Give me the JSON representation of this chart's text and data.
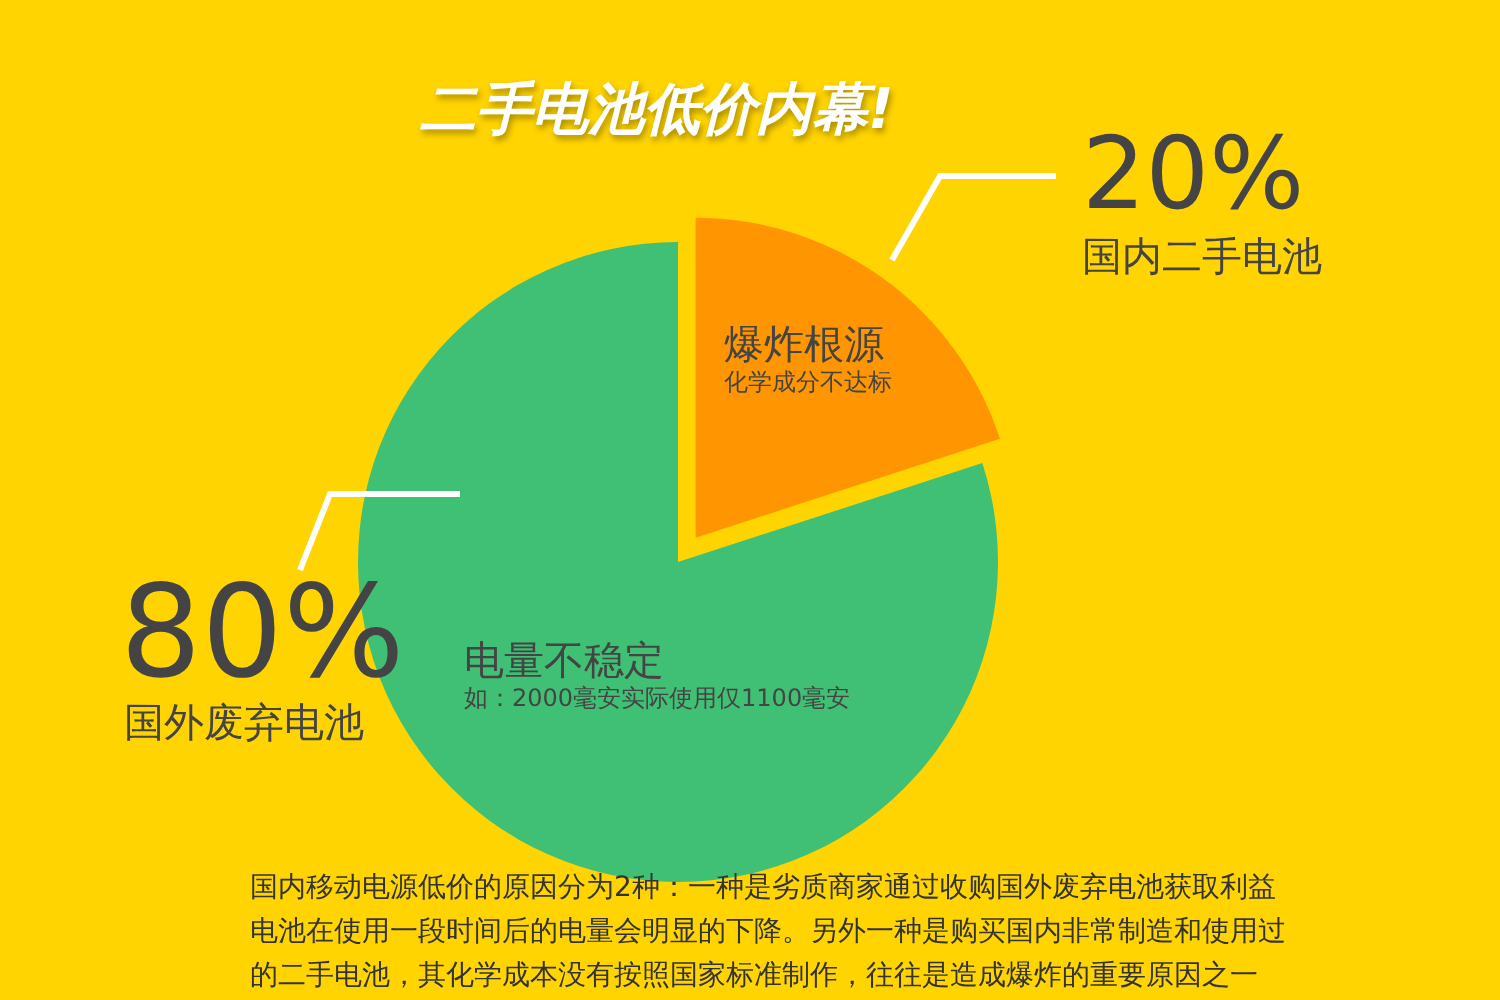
{
  "chart_data": {
    "type": "pie",
    "title": "二手电池低价内幕!",
    "categories": [
      "国内二手电池",
      "国外废弃电池"
    ],
    "values": [
      20,
      80
    ],
    "colors": [
      "#ff9500",
      "#40c074"
    ],
    "value_labels": [
      "20%",
      "80%"
    ],
    "annotations": [
      "爆炸根源",
      "化学成分不达标",
      "电量不稳定",
      "如：2000毫安实际使用仅1100毫安",
      "国内移动电源低价的原因分为2种：一种是劣质商家通过收购国外废弃电池获取利益电池在使用一段时间后的电量会明显的下降。另外一种是购买国内非常制造和使用过的二手电池，其化学成本没有按照国家标准制作，往往是造成爆炸的重要原因之一"
    ]
  }
}
